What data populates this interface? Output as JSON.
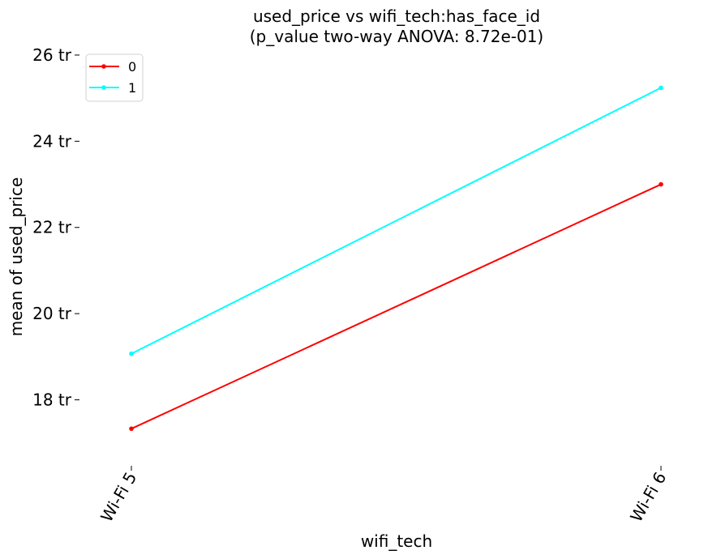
{
  "chart_data": {
    "type": "line",
    "title": "used_price vs wifi_tech:has_face_id",
    "subtitle": "(p_value two-way ANOVA: 8.72e-01)",
    "xlabel": "wifi_tech",
    "ylabel": "mean of used_price",
    "categories": [
      "Wi-Fi 5",
      "Wi-Fi 6"
    ],
    "y_unit_suffix": " tr",
    "ylim": [
      16.6,
      26.3
    ],
    "yticks": [
      18,
      20,
      22,
      24,
      26
    ],
    "ytick_labels": [
      "18 tr",
      "20 tr",
      "22 tr",
      "24 tr",
      "26 tr"
    ],
    "grid": false,
    "legend_position": "top-left",
    "series": [
      {
        "name": "0",
        "color": "#ff0000",
        "values": [
          17.33,
          23.0
        ]
      },
      {
        "name": "1",
        "color": "#00ffff",
        "values": [
          19.07,
          25.24
        ]
      }
    ]
  }
}
